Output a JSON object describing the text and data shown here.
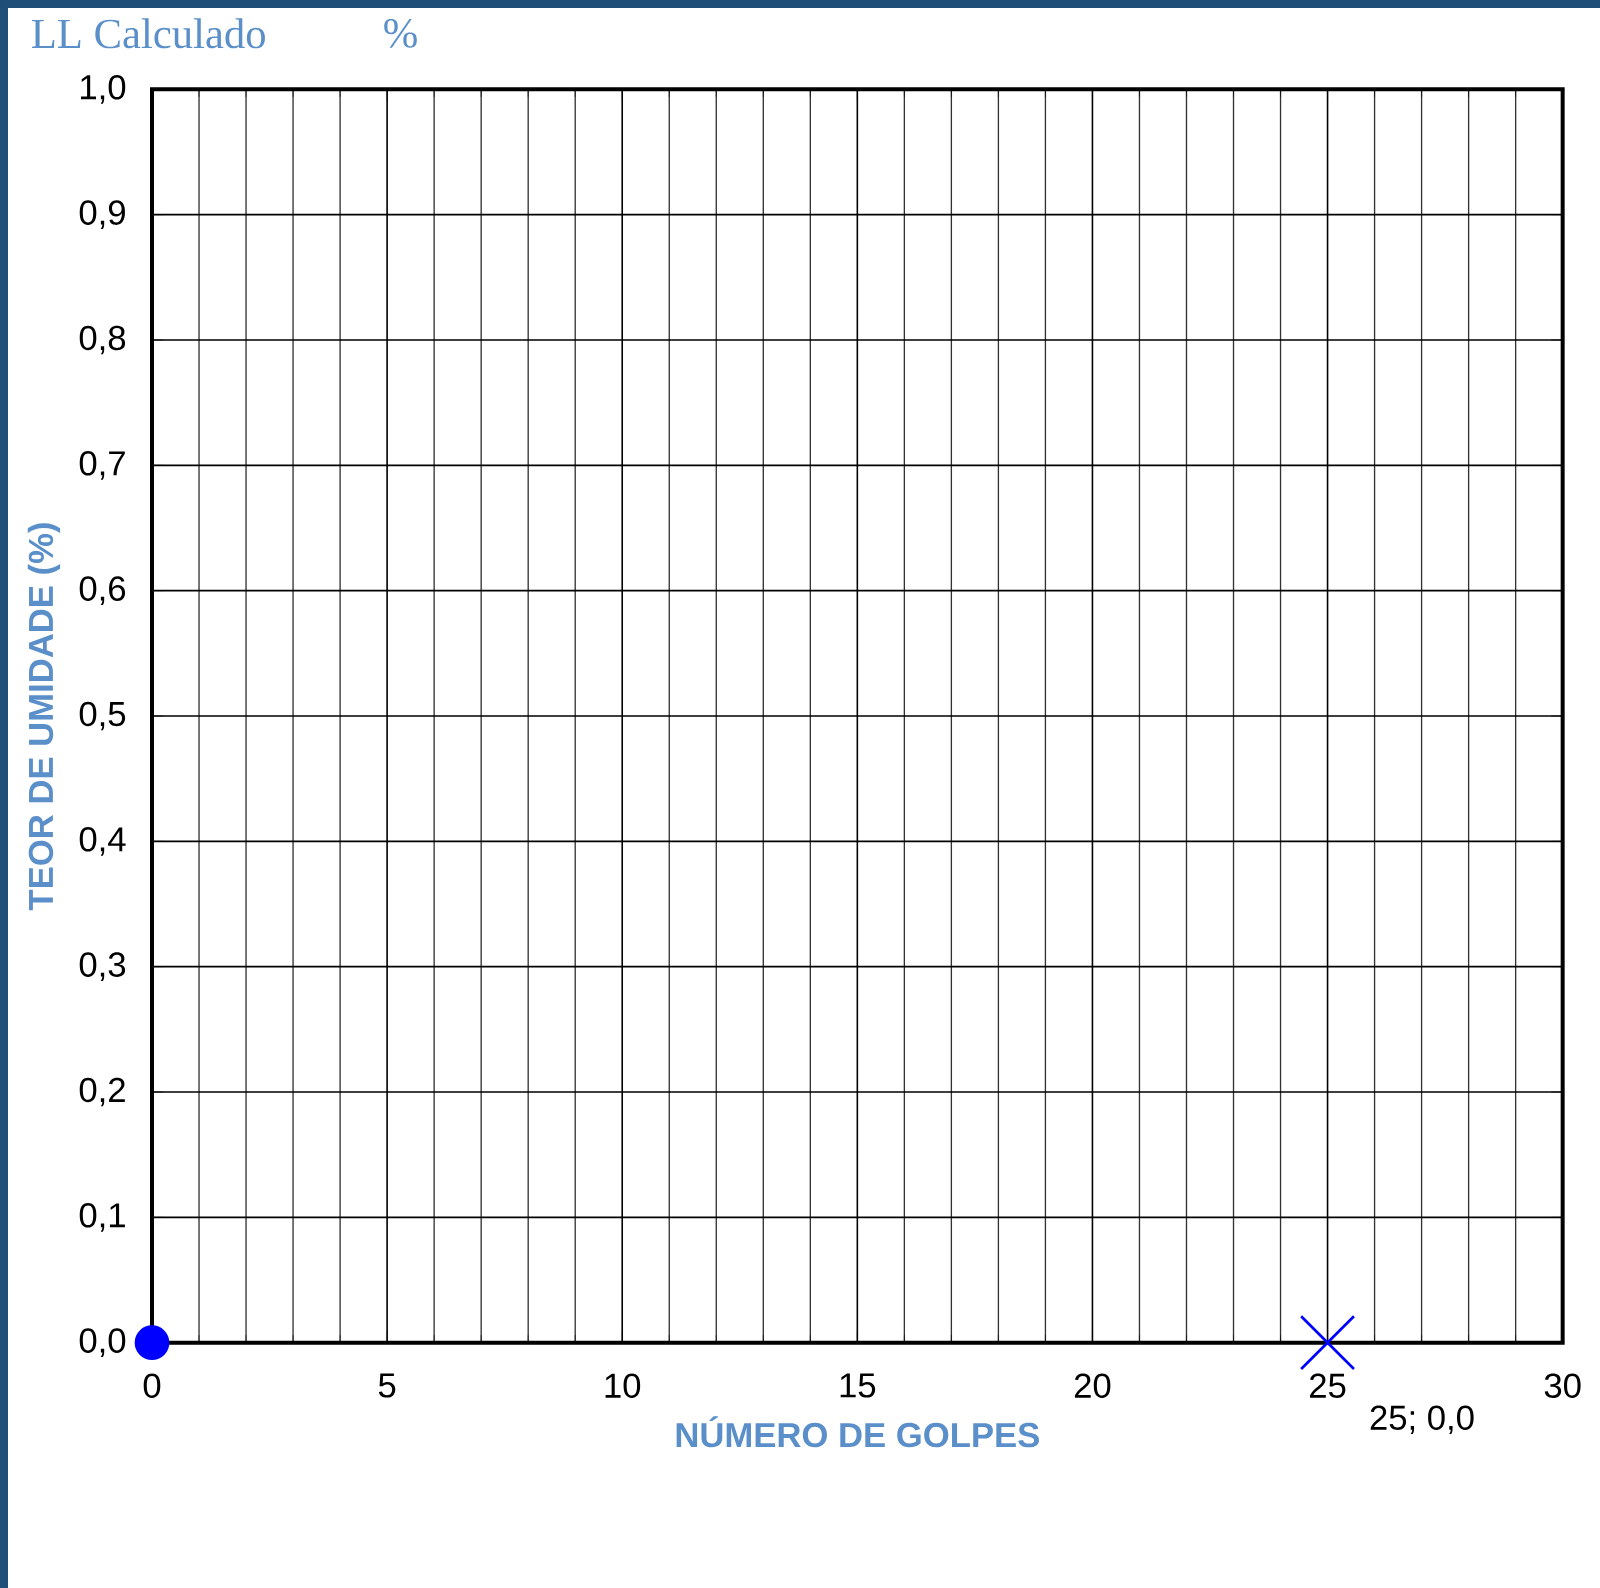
{
  "chart_data": {
    "type": "scatter",
    "title": "LL Calculado",
    "annotations": [
      "%"
    ],
    "xlabel": "NÚMERO DE GOLPES",
    "ylabel": "TEOR DE UMIDADE (%)",
    "xlim": [
      0,
      30
    ],
    "xticks": [
      0,
      5,
      10,
      15,
      20,
      25,
      30
    ],
    "ylim": [
      0,
      1
    ],
    "yticks": [
      {
        "value": 0,
        "label": "0,0"
      },
      {
        "value": 0.1,
        "label": "0,1"
      },
      {
        "value": 0.2,
        "label": "0,2"
      },
      {
        "value": 0.3,
        "label": "0,3"
      },
      {
        "value": 0.4,
        "label": "0,4"
      },
      {
        "value": 0.5,
        "label": "0,5"
      },
      {
        "value": 0.6,
        "label": "0,6"
      },
      {
        "value": 0.7,
        "label": "0,7"
      },
      {
        "value": 0.8,
        "label": "0,8"
      },
      {
        "value": 0.9,
        "label": "0,9"
      },
      {
        "value": 1,
        "label": "1,0"
      }
    ],
    "grid": true,
    "series": [
      {
        "color": "#0000ff",
        "marker": "circle",
        "x": [
          0
        ],
        "values": [
          0
        ]
      },
      {
        "color": "#0000ff",
        "marker": "cross",
        "x": [
          25
        ],
        "values": [
          0
        ],
        "value_labels": [
          "25; 0,0"
        ]
      }
    ]
  }
}
